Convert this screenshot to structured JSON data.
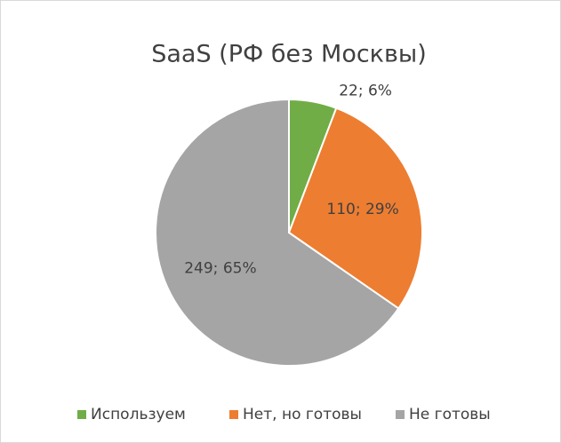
{
  "chart_data": {
    "type": "pie",
    "title": "SaaS (РФ без Москвы)",
    "categories": [
      "Используем",
      "Нет, но готовы",
      "Не готовы"
    ],
    "values": [
      22,
      110,
      249
    ],
    "value_labels": [
      "22; 6%",
      "110; 29%",
      "249; 65%"
    ],
    "colors": [
      "#70ad47",
      "#ed7d31",
      "#a5a5a5"
    ],
    "legend": "bottom"
  }
}
